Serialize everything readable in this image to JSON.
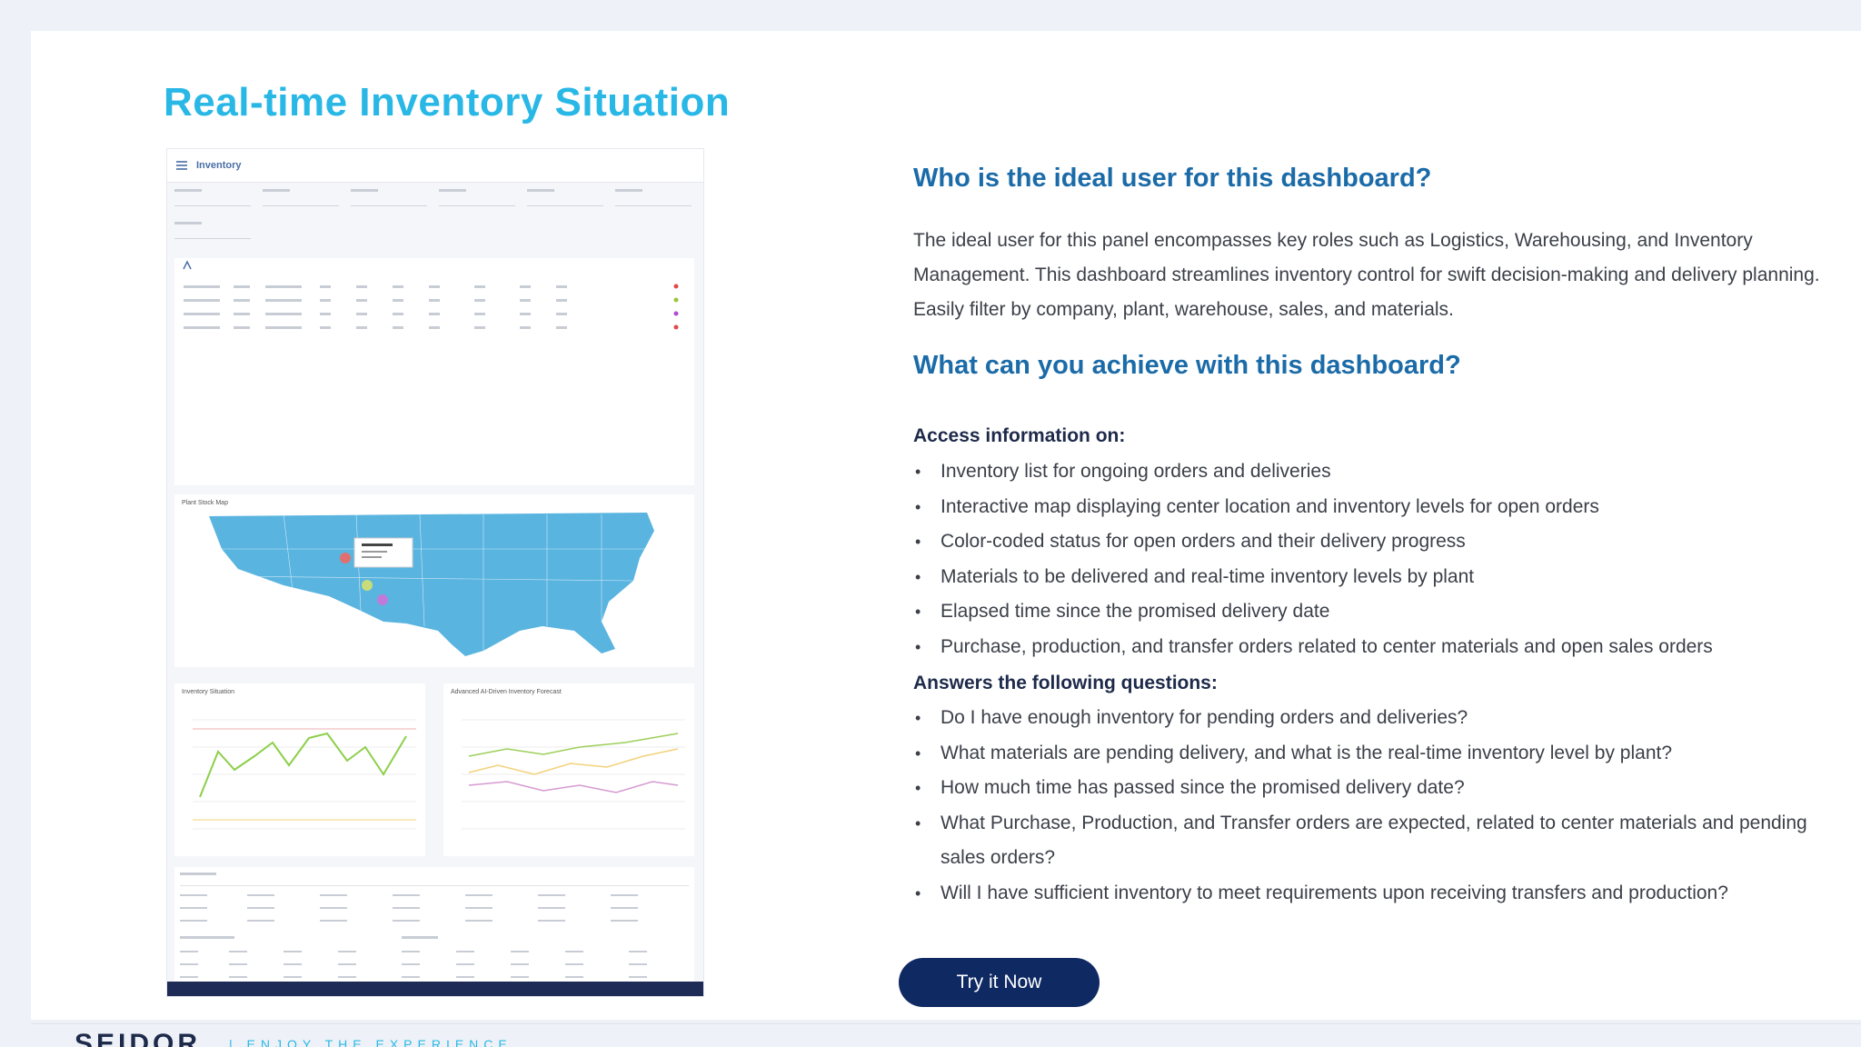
{
  "page": {
    "title": "Real-time Inventory Situation"
  },
  "preview": {
    "header_title": "Inventory",
    "map_caption": "Plant Stock Map",
    "chart1_caption": "Inventory Situation",
    "chart2_caption": "Advanced AI-Driven Inventory Forecast",
    "status_colors": [
      "#e04a4a",
      "#9ac53c",
      "#b44ad6",
      "#e04a4a"
    ]
  },
  "content": {
    "q1": "Who is the ideal user for this dashboard?",
    "q1_text": "The ideal user for this panel encompasses key roles such as Logistics, Warehousing, and Inventory Management. This dashboard streamlines inventory control for swift decision-making and delivery planning. Easily filter by company, plant, warehouse, sales, and materials.",
    "q2": "What can you achieve with this dashboard?",
    "access_heading": "Access information on:",
    "access_items": [
      "Inventory list for ongoing orders and deliveries",
      "Interactive map displaying center location and inventory levels for open orders",
      "Color-coded status for open orders and their delivery progress",
      "Materials to be delivered and real-time inventory levels by plant",
      "Elapsed time since the promised delivery date",
      "Purchase, production, and transfer orders related to center materials and open sales orders"
    ],
    "answers_heading": "Answers the following questions:",
    "answer_items": [
      "Do I have enough inventory for pending orders and deliveries?",
      "What materials are pending delivery, and what is the real-time inventory level by plant?",
      "How much time has passed since the promised delivery date?",
      "What Purchase, Production, and Transfer orders are expected, related to center materials and pending sales orders?",
      "Will I have sufficient inventory to meet requirements upon receiving transfers and production?"
    ],
    "cta_label": "Try it Now"
  },
  "footer": {
    "brand": "SEIDOR",
    "tagline": "| ENJOY THE EXPERIENCE"
  },
  "colors": {
    "title": "#29b8e6",
    "heading": "#1b6ba8",
    "button": "#0f2963"
  }
}
